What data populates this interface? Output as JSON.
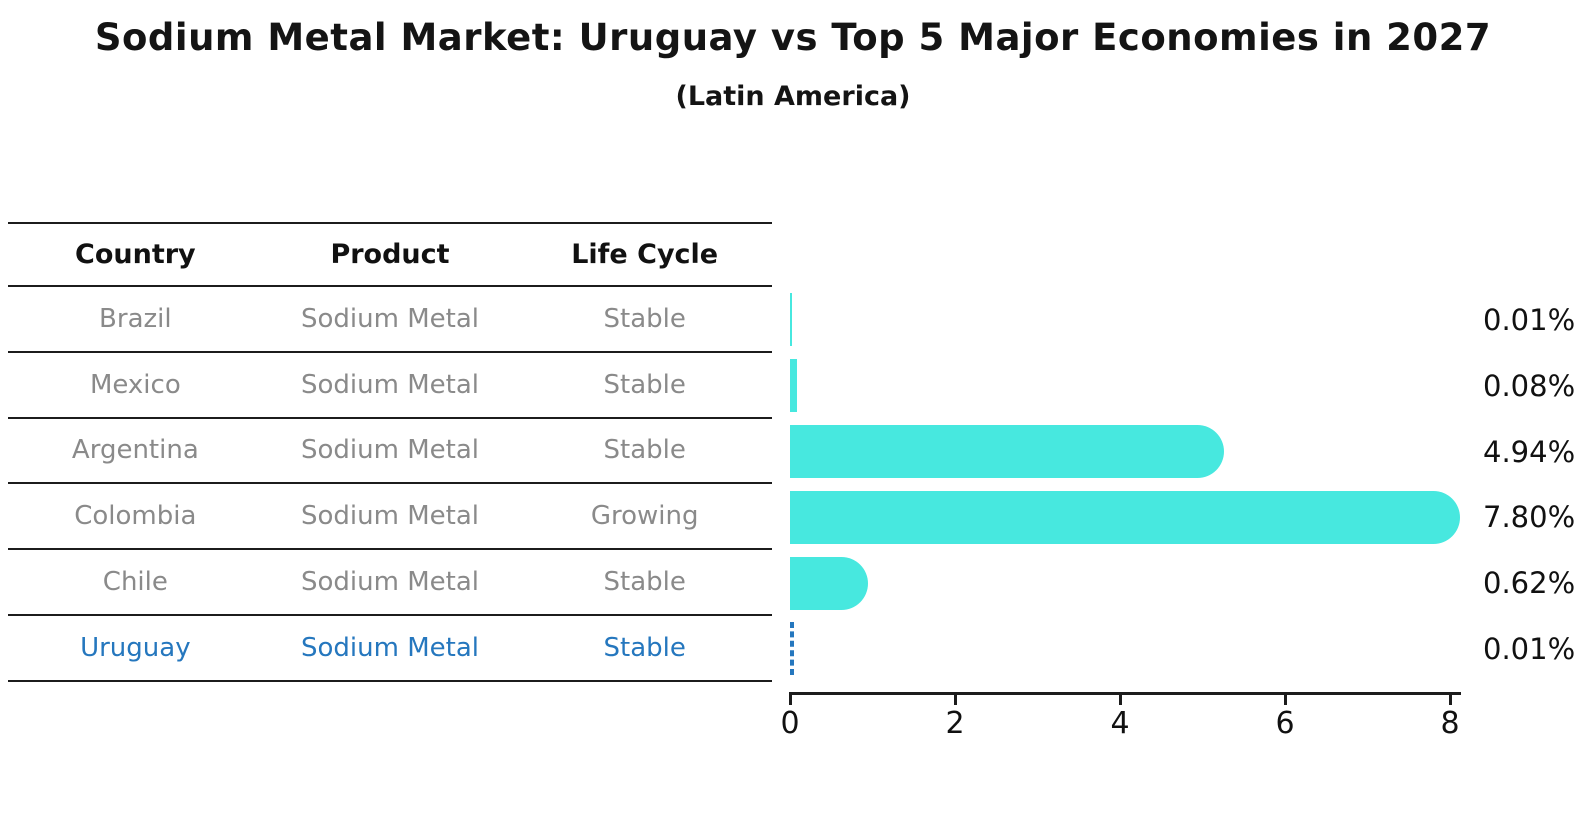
{
  "title": "Sodium Metal Market: Uruguay vs Top 5 Major Economies in 2027",
  "subtitle": "(Latin America)",
  "table": {
    "headers": [
      "Country",
      "Product",
      "Life Cycle"
    ],
    "rows": [
      {
        "country": "Brazil",
        "product": "Sodium Metal",
        "life_cycle": "Stable",
        "highlight": false
      },
      {
        "country": "Mexico",
        "product": "Sodium Metal",
        "life_cycle": "Stable",
        "highlight": false
      },
      {
        "country": "Argentina",
        "product": "Sodium Metal",
        "life_cycle": "Stable",
        "highlight": false
      },
      {
        "country": "Colombia",
        "product": "Sodium Metal",
        "life_cycle": "Growing",
        "highlight": false
      },
      {
        "country": "Chile",
        "product": "Sodium Metal",
        "life_cycle": "Stable",
        "highlight": false
      },
      {
        "country": "Uruguay",
        "product": "Sodium Metal",
        "life_cycle": "Stable",
        "highlight": true
      }
    ]
  },
  "chart_data": {
    "type": "bar",
    "orientation": "horizontal",
    "title": "Sodium Metal Market: Uruguay vs Top 5 Major Economies in 2027",
    "subtitle": "(Latin America)",
    "categories": [
      "Brazil",
      "Mexico",
      "Argentina",
      "Colombia",
      "Chile",
      "Uruguay"
    ],
    "values": [
      0.01,
      0.08,
      4.94,
      7.8,
      0.62,
      0.01
    ],
    "value_labels": [
      "0.01%",
      "0.08%",
      "4.94%",
      "7.80%",
      "0.62%",
      "0.01%"
    ],
    "x_ticks": [
      "0",
      "2",
      "4",
      "6",
      "8"
    ],
    "x_tick_values": [
      0,
      2,
      4,
      6,
      8
    ],
    "xlim": [
      0,
      8.2
    ],
    "xlabel": "",
    "ylabel": "",
    "grid": false,
    "legend": false,
    "bar_color": "#47e8df",
    "highlight_index": 5,
    "highlight_style": "dashed-outline",
    "highlight_color": "#2577be"
  }
}
